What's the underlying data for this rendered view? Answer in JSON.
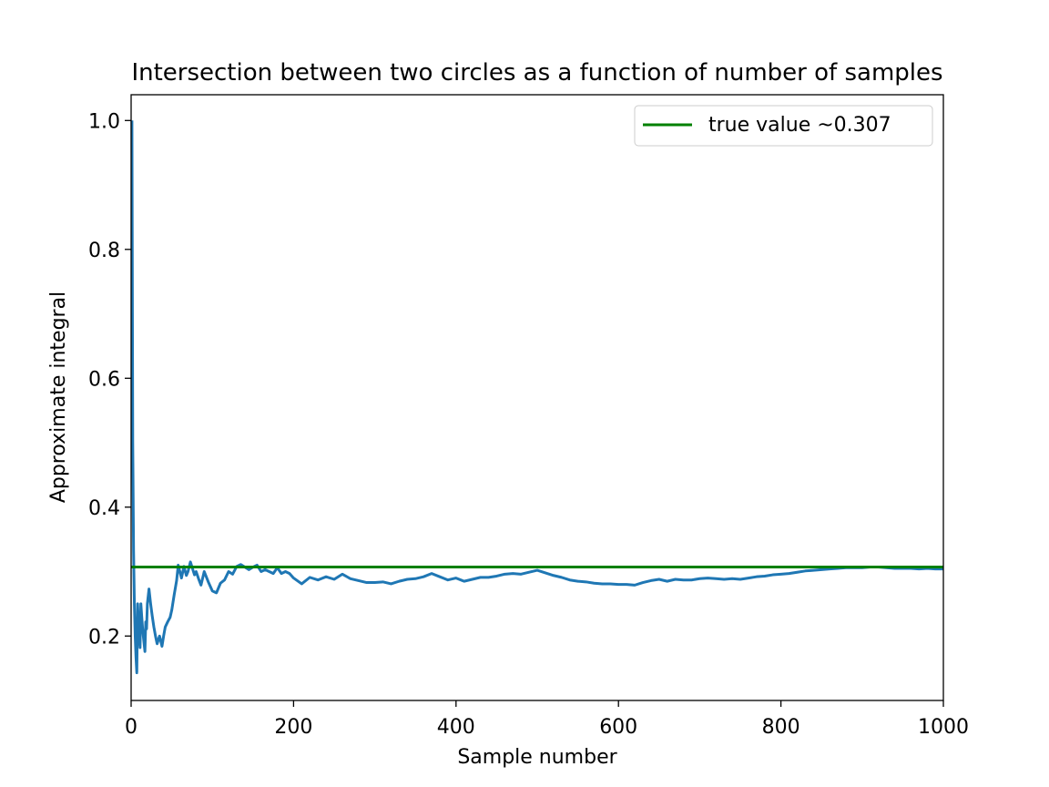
{
  "chart_data": {
    "type": "line",
    "title": "Intersection between two circles as a function of number of samples",
    "xlabel": "Sample number",
    "ylabel": "Approximate integral",
    "xlim": [
      0,
      1000
    ],
    "ylim": [
      0.1,
      1.04
    ],
    "xticks": [
      "0",
      "200",
      "400",
      "600",
      "800",
      "1000"
    ],
    "xtick_values": [
      0,
      200,
      400,
      600,
      800,
      1000
    ],
    "yticks": [
      "0.2",
      "0.4",
      "0.6",
      "0.8",
      "1.0"
    ],
    "ytick_values": [
      0.2,
      0.4,
      0.6,
      0.8,
      1.0
    ],
    "grid": false,
    "legend_position": "top-right",
    "series": [
      {
        "name": "",
        "color": "#1f77b4",
        "x": [
          1,
          2,
          3,
          4,
          5,
          6,
          7,
          8,
          9,
          10,
          11,
          12,
          13,
          14,
          15,
          16,
          17,
          18,
          19,
          20,
          22,
          24,
          26,
          28,
          30,
          32,
          35,
          38,
          40,
          42,
          45,
          48,
          50,
          53,
          56,
          58,
          60,
          62,
          65,
          68,
          70,
          73,
          76,
          78,
          80,
          83,
          86,
          90,
          95,
          100,
          105,
          110,
          115,
          120,
          125,
          130,
          135,
          140,
          145,
          150,
          155,
          160,
          165,
          170,
          175,
          180,
          185,
          190,
          195,
          200,
          210,
          220,
          230,
          240,
          250,
          260,
          270,
          280,
          290,
          300,
          310,
          320,
          330,
          340,
          350,
          360,
          370,
          380,
          390,
          400,
          410,
          420,
          430,
          440,
          450,
          460,
          470,
          480,
          490,
          500,
          510,
          520,
          530,
          540,
          550,
          560,
          570,
          580,
          590,
          600,
          610,
          620,
          630,
          640,
          650,
          660,
          670,
          680,
          690,
          700,
          710,
          720,
          730,
          740,
          750,
          760,
          770,
          780,
          790,
          800,
          810,
          820,
          830,
          840,
          850,
          860,
          870,
          880,
          890,
          900,
          910,
          920,
          930,
          940,
          950,
          960,
          970,
          980,
          990,
          1000
        ],
        "y": [
          1.0,
          0.5,
          0.333,
          0.25,
          0.2,
          0.167,
          0.143,
          0.25,
          0.222,
          0.2,
          0.182,
          0.25,
          0.231,
          0.214,
          0.2,
          0.188,
          0.176,
          0.222,
          0.211,
          0.25,
          0.273,
          0.25,
          0.231,
          0.214,
          0.2,
          0.188,
          0.2,
          0.184,
          0.2,
          0.214,
          0.222,
          0.229,
          0.24,
          0.264,
          0.286,
          0.31,
          0.3,
          0.29,
          0.308,
          0.294,
          0.3,
          0.315,
          0.303,
          0.295,
          0.3,
          0.289,
          0.279,
          0.3,
          0.284,
          0.27,
          0.267,
          0.282,
          0.287,
          0.3,
          0.296,
          0.308,
          0.311,
          0.307,
          0.303,
          0.307,
          0.31,
          0.3,
          0.303,
          0.3,
          0.297,
          0.306,
          0.297,
          0.3,
          0.297,
          0.29,
          0.281,
          0.291,
          0.287,
          0.292,
          0.288,
          0.296,
          0.289,
          0.286,
          0.283,
          0.283,
          0.284,
          0.281,
          0.285,
          0.288,
          0.289,
          0.292,
          0.297,
          0.292,
          0.287,
          0.29,
          0.285,
          0.288,
          0.291,
          0.291,
          0.293,
          0.296,
          0.297,
          0.296,
          0.299,
          0.302,
          0.298,
          0.294,
          0.291,
          0.287,
          0.285,
          0.284,
          0.282,
          0.281,
          0.281,
          0.28,
          0.28,
          0.279,
          0.283,
          0.286,
          0.288,
          0.285,
          0.288,
          0.287,
          0.287,
          0.289,
          0.29,
          0.289,
          0.288,
          0.289,
          0.288,
          0.29,
          0.292,
          0.293,
          0.295,
          0.296,
          0.297,
          0.299,
          0.301,
          0.302,
          0.303,
          0.304,
          0.305,
          0.306,
          0.306,
          0.306,
          0.307,
          0.307,
          0.306,
          0.305,
          0.305,
          0.305,
          0.304,
          0.305,
          0.304,
          0.304
        ]
      },
      {
        "name": "true value ~0.307",
        "color": "#008000",
        "x": [
          0,
          1000
        ],
        "y": [
          0.307,
          0.307
        ]
      }
    ]
  }
}
